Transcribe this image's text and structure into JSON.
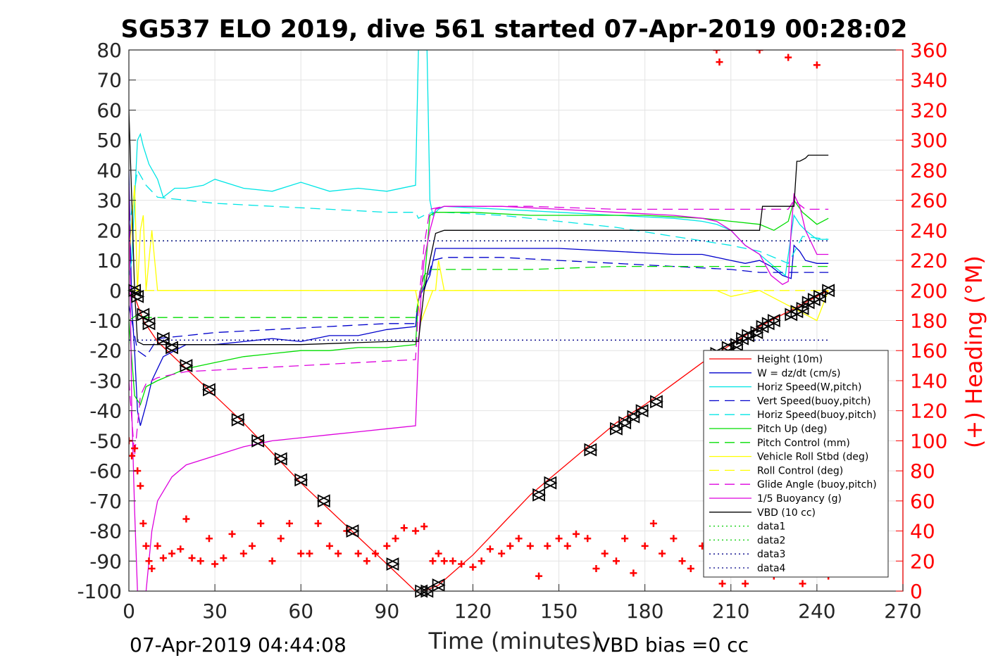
{
  "chart_data": {
    "type": "line",
    "title": "SG537 ELO 2019, dive 561 started 07-Apr-2019 00:28:02",
    "xlabel": "Time (minutes)",
    "ylabel": "",
    "y2label": "(+) Heading (°M)",
    "xlim": [
      0,
      270
    ],
    "ylim": [
      -100,
      80
    ],
    "y2lim": [
      0,
      360
    ],
    "xticks": [
      "0",
      "30",
      "60",
      "90",
      "120",
      "150",
      "180",
      "210",
      "240",
      "270"
    ],
    "yticks": [
      "-100",
      "-90",
      "-80",
      "-70",
      "-60",
      "-50",
      "-40",
      "-30",
      "-20",
      "-10",
      "0",
      "10",
      "20",
      "30",
      "40",
      "50",
      "60",
      "70",
      "80"
    ],
    "y2ticks": [
      "0",
      "20",
      "40",
      "60",
      "80",
      "100",
      "120",
      "140",
      "160",
      "180",
      "200",
      "220",
      "240",
      "260",
      "280",
      "300",
      "320",
      "340",
      "360"
    ],
    "grid": true,
    "legend_position": "right",
    "footer_left": "07-Apr-2019 04:44:08",
    "footer_right": "VBD bias =0 cc",
    "colors": {
      "height": "#ff0000",
      "w": "#0000cc",
      "horiz_w": "#00e5e5",
      "vert_buoy": "#0000cc",
      "horiz_buoy": "#00e5e5",
      "pitch": "#00dd00",
      "pitch_ctl": "#00dd00",
      "roll": "#ffff00",
      "roll_ctl": "#ffff00",
      "glide": "#dd00dd",
      "buoy": "#dd00dd",
      "vbd": "#000000",
      "heading": "#ff0000"
    },
    "series": [
      {
        "key": "height",
        "name": "Height (10m)",
        "style": "solid",
        "x": [
          0,
          2,
          5,
          10,
          20,
          30,
          40,
          50,
          60,
          70,
          80,
          90,
          100,
          103,
          108,
          120,
          130,
          140,
          150,
          160,
          170,
          180,
          190,
          200,
          210,
          220,
          230,
          240,
          244
        ],
        "y": [
          -1,
          -2,
          -10,
          -17,
          -26,
          -35,
          -44,
          -54,
          -64,
          -73,
          -82,
          -91,
          -100,
          -100,
          -98,
          -88,
          -78,
          -68,
          -60,
          -52,
          -44,
          -38,
          -31,
          -24,
          -18,
          -12,
          -7,
          -2,
          0
        ]
      },
      {
        "key": "w",
        "name": "W = dz/dt (cm/s)",
        "style": "solid",
        "x": [
          0,
          1,
          2,
          3,
          4,
          6,
          8,
          12,
          20,
          30,
          40,
          50,
          60,
          70,
          80,
          90,
          100,
          101,
          102,
          103,
          105,
          107,
          110,
          130,
          150,
          170,
          190,
          200,
          205,
          210,
          215,
          220,
          224,
          228,
          231,
          232,
          234,
          236,
          240,
          244
        ],
        "y": [
          40,
          -5,
          -20,
          -40,
          -45,
          -38,
          -30,
          -22,
          -18,
          -18,
          -17,
          -16,
          -17,
          -15,
          -15,
          -13,
          -12,
          -3,
          -1,
          1,
          5,
          14,
          14,
          14,
          14,
          13,
          12,
          12,
          11,
          10,
          9,
          10,
          8,
          5,
          4,
          15,
          13,
          10,
          9,
          9
        ]
      },
      {
        "key": "horiz_w",
        "name": "Horiz Speed(W,pitch)",
        "style": "solid",
        "x": [
          0,
          1,
          2,
          3,
          4,
          5,
          7,
          10,
          12,
          16,
          20,
          26,
          30,
          40,
          50,
          60,
          70,
          80,
          90,
          100,
          101,
          102,
          103,
          104,
          105,
          106,
          108,
          110,
          130,
          150,
          170,
          190,
          200,
          205,
          210,
          215,
          220,
          225,
          229,
          232,
          234,
          236,
          240,
          244
        ],
        "y": [
          5,
          10,
          30,
          50,
          52,
          48,
          42,
          37,
          31,
          34,
          34,
          35,
          37,
          34,
          33,
          36,
          33,
          34,
          33,
          35,
          80,
          80,
          80,
          80,
          30,
          25,
          27,
          28,
          27,
          26,
          25,
          24,
          23,
          22,
          20,
          15,
          12,
          8,
          5,
          25,
          22,
          20,
          17,
          17
        ]
      },
      {
        "key": "vert_buoy",
        "name": "Vert Speed(buoy,pitch)",
        "style": "dash",
        "x": [
          0,
          3,
          6,
          10,
          20,
          30,
          50,
          70,
          90,
          100,
          101,
          103,
          106,
          110,
          130,
          150,
          170,
          190,
          210,
          220,
          230,
          235,
          244
        ],
        "y": [
          -5,
          -20,
          -22,
          -16,
          -15,
          -14,
          -13,
          -12,
          -11,
          -11,
          -3,
          0,
          10,
          11,
          11,
          10,
          9,
          8,
          7,
          6,
          6,
          6,
          6
        ]
      },
      {
        "key": "horiz_buoy",
        "name": "Horiz Speed(buoy,pitch)",
        "style": "dash",
        "x": [
          0,
          3,
          6,
          10,
          20,
          30,
          50,
          70,
          90,
          100,
          101,
          103,
          106,
          110,
          130,
          150,
          170,
          190,
          210,
          220,
          230,
          235,
          244
        ],
        "y": [
          20,
          40,
          35,
          31,
          30,
          29,
          28,
          27,
          26,
          26,
          24,
          25,
          26,
          26,
          25,
          23,
          21,
          18,
          15,
          13,
          9,
          18,
          17
        ]
      },
      {
        "key": "pitch",
        "name": "Pitch Up (deg)",
        "style": "solid",
        "x": [
          0,
          2,
          4,
          6,
          10,
          20,
          30,
          40,
          50,
          60,
          70,
          80,
          90,
          100,
          101,
          102,
          103,
          105,
          107,
          120,
          140,
          160,
          180,
          200,
          210,
          220,
          225,
          230,
          232,
          235,
          240,
          244
        ],
        "y": [
          -10,
          -35,
          -38,
          -32,
          -30,
          -26,
          -24,
          -22,
          -21,
          -20,
          -20,
          -19,
          -19,
          -18,
          -3,
          0,
          2,
          25,
          26,
          26,
          25,
          25,
          25,
          24,
          23,
          22,
          20,
          23,
          30,
          26,
          22,
          24
        ]
      },
      {
        "key": "pitch_ctl",
        "name": "Pitch Control (mm)",
        "style": "dash",
        "x": [
          0,
          3,
          6,
          10,
          30,
          60,
          90,
          100,
          101,
          103,
          105,
          110,
          140,
          170,
          200,
          220,
          230,
          240,
          244
        ],
        "y": [
          -10,
          -8,
          -9,
          -9,
          -9,
          -9,
          -9,
          -9,
          -3,
          5,
          7,
          7,
          7,
          8,
          8,
          8,
          8,
          8,
          8
        ]
      },
      {
        "key": "roll",
        "name": "Vehicle Roll Stbd (deg)",
        "style": "solid",
        "x": [
          0,
          2,
          3,
          4,
          5,
          6,
          8,
          10,
          20,
          30,
          40,
          50,
          60,
          70,
          80,
          90,
          100,
          101,
          102,
          106,
          107,
          108,
          110,
          130,
          150,
          170,
          190,
          200,
          205,
          210,
          220,
          230,
          240,
          244
        ],
        "y": [
          10,
          35,
          0,
          20,
          25,
          0,
          20,
          0,
          0,
          0,
          0,
          0,
          0,
          0,
          0,
          0,
          0,
          -5,
          -10,
          0,
          0,
          10,
          0,
          0,
          0,
          0,
          0,
          0,
          0,
          -2,
          0,
          -5,
          -10,
          0
        ]
      },
      {
        "key": "roll_ctl",
        "name": "Roll Control (deg)",
        "style": "dash",
        "x": [
          0,
          5,
          10,
          30,
          60,
          90,
          100,
          110,
          150,
          200,
          244
        ],
        "y": [
          0,
          0,
          0,
          0,
          0,
          0,
          0,
          0,
          0,
          0,
          0
        ]
      },
      {
        "key": "glide",
        "name": "Glide Angle (buoy,pitch)",
        "style": "dash",
        "x": [
          0,
          2,
          4,
          6,
          10,
          20,
          40,
          60,
          80,
          100,
          101,
          103,
          105,
          110,
          140,
          170,
          200,
          215,
          225,
          230,
          232,
          236,
          240,
          244
        ],
        "y": [
          -30,
          -55,
          -35,
          -31,
          -29,
          -27,
          -26,
          -25,
          -24,
          -23,
          -5,
          15,
          27,
          28,
          28,
          27,
          27,
          27,
          27,
          27,
          30,
          27,
          27,
          27
        ]
      },
      {
        "key": "buoy",
        "name": "1/5 Buoyancy (g)",
        "style": "solid",
        "x": [
          0,
          1,
          2,
          3,
          4,
          5,
          6,
          8,
          10,
          15,
          20,
          30,
          40,
          50,
          60,
          70,
          80,
          90,
          100,
          101,
          102,
          103,
          105,
          107,
          110,
          130,
          150,
          170,
          190,
          200,
          205,
          210,
          215,
          220,
          224,
          228,
          230,
          231,
          232,
          234,
          236,
          240,
          244
        ],
        "y": [
          35,
          -40,
          -73,
          -100,
          -100,
          -100,
          -100,
          -80,
          -70,
          -62,
          -58,
          -55,
          -52,
          -50,
          -49,
          -48,
          -47,
          -46,
          -45,
          -20,
          0,
          10,
          20,
          27,
          28,
          28,
          27,
          26,
          25,
          24,
          23,
          20,
          15,
          12,
          5,
          2,
          3,
          20,
          32,
          28,
          20,
          12,
          12
        ]
      },
      {
        "key": "vbd",
        "name": "VBD (10 cc)",
        "style": "solid",
        "x": [
          0,
          1,
          2,
          3,
          5,
          10,
          30,
          60,
          90,
          100,
          101,
          103,
          105,
          107,
          110,
          150,
          200,
          220,
          221,
          230,
          232,
          233,
          234,
          236,
          237,
          240,
          244
        ],
        "y": [
          60,
          30,
          0,
          -17,
          -18,
          -18,
          -18,
          -18,
          -17,
          -17,
          -17,
          0,
          10,
          19,
          20,
          20,
          20,
          20,
          28,
          28,
          28,
          43,
          43,
          44,
          45,
          45,
          45
        ]
      },
      {
        "key": "data1",
        "name": "data1",
        "style": "dot",
        "x": [
          0,
          244
        ],
        "y": [
          16.5,
          16.5
        ]
      },
      {
        "key": "data2",
        "name": "data2",
        "style": "dot",
        "x": [
          0,
          244
        ],
        "y": [
          16.5,
          16.5
        ]
      },
      {
        "key": "data3",
        "name": "data3",
        "style": "dot",
        "x": [
          0,
          244
        ],
        "y": [
          16.5,
          16.5
        ]
      },
      {
        "key": "data4",
        "name": "data4",
        "style": "dot",
        "x": [
          0,
          244
        ],
        "y": [
          -16.5,
          -16.5
        ]
      }
    ],
    "heading": {
      "axis": "right",
      "marker": "+",
      "x": [
        0,
        1,
        2,
        3,
        4,
        5,
        6,
        7,
        8,
        10,
        12,
        15,
        18,
        20,
        22,
        25,
        28,
        30,
        33,
        36,
        40,
        43,
        46,
        50,
        53,
        56,
        60,
        63,
        66,
        70,
        73,
        76,
        80,
        83,
        86,
        90,
        93,
        96,
        100,
        103,
        106,
        108,
        110,
        113,
        116,
        120,
        123,
        126,
        130,
        133,
        136,
        140,
        143,
        146,
        150,
        153,
        156,
        160,
        163,
        166,
        170,
        173,
        176,
        180,
        183,
        186,
        190,
        193,
        196,
        200,
        203,
        205,
        206,
        207,
        210,
        215,
        220,
        225,
        230,
        235,
        240,
        244
      ],
      "y": [
        100,
        90,
        95,
        80,
        70,
        45,
        30,
        20,
        15,
        30,
        22,
        25,
        28,
        48,
        22,
        20,
        35,
        18,
        22,
        38,
        25,
        30,
        45,
        20,
        35,
        45,
        25,
        25,
        45,
        30,
        25,
        40,
        25,
        20,
        25,
        30,
        35,
        42,
        40,
        43,
        20,
        25,
        20,
        20,
        18,
        16,
        20,
        28,
        25,
        30,
        35,
        30,
        10,
        30,
        35,
        30,
        38,
        35,
        15,
        25,
        20,
        35,
        12,
        30,
        45,
        25,
        35,
        20,
        15,
        30,
        15,
        360,
        352,
        5,
        15,
        5,
        360,
        10,
        355,
        5,
        350,
        10
      ]
    },
    "markers": {
      "type": "triangle-pair",
      "x": [
        2,
        3,
        5,
        7,
        12,
        15,
        20,
        28,
        38,
        45,
        53,
        60,
        68,
        78,
        92,
        102,
        104,
        108,
        143,
        147,
        161,
        170,
        173,
        176,
        179,
        184,
        205,
        209,
        212,
        214,
        216,
        219,
        221,
        223,
        225,
        231,
        233,
        235,
        237,
        239,
        241,
        244
      ],
      "y": [
        0,
        -2,
        -8,
        -11,
        -16,
        -19,
        -25,
        -33,
        -43,
        -50,
        -56,
        -63,
        -70,
        -80,
        -91,
        -100,
        -100,
        -98,
        -68,
        -64,
        -53,
        -46,
        -44,
        -42,
        -40,
        -37,
        -21,
        -19,
        -18,
        -16,
        -15,
        -14,
        -12,
        -11,
        -10,
        -8,
        -7,
        -6,
        -4,
        -3,
        -2,
        0
      ]
    }
  }
}
